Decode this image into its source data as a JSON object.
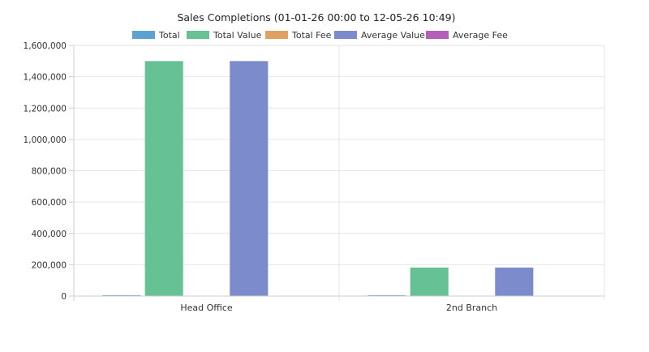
{
  "chart_data": {
    "type": "bar",
    "title": "Sales Completions (01-01-26 00:00 to 12-05-26 10:49)",
    "categories": [
      "Head Office",
      "2nd Branch"
    ],
    "series": [
      {
        "name": "Total",
        "color": "#5ba3d0",
        "values": [
          3,
          1
        ]
      },
      {
        "name": "Total Value",
        "color": "#66c295",
        "values": [
          1500000,
          182000
        ]
      },
      {
        "name": "Total Fee",
        "color": "#e0a060",
        "values": [
          0,
          0
        ]
      },
      {
        "name": "Average Value",
        "color": "#7b8bcb",
        "values": [
          1500000,
          182000
        ]
      },
      {
        "name": "Average Fee",
        "color": "#b65fb8",
        "values": [
          0,
          0
        ]
      }
    ],
    "yticks": [
      "0",
      "200,000",
      "400,000",
      "600,000",
      "800,000",
      "1,000,000",
      "1,200,000",
      "1,400,000",
      "1,600,000"
    ],
    "ylim": [
      0,
      1600000
    ],
    "grid": true,
    "legend_position": "top"
  }
}
